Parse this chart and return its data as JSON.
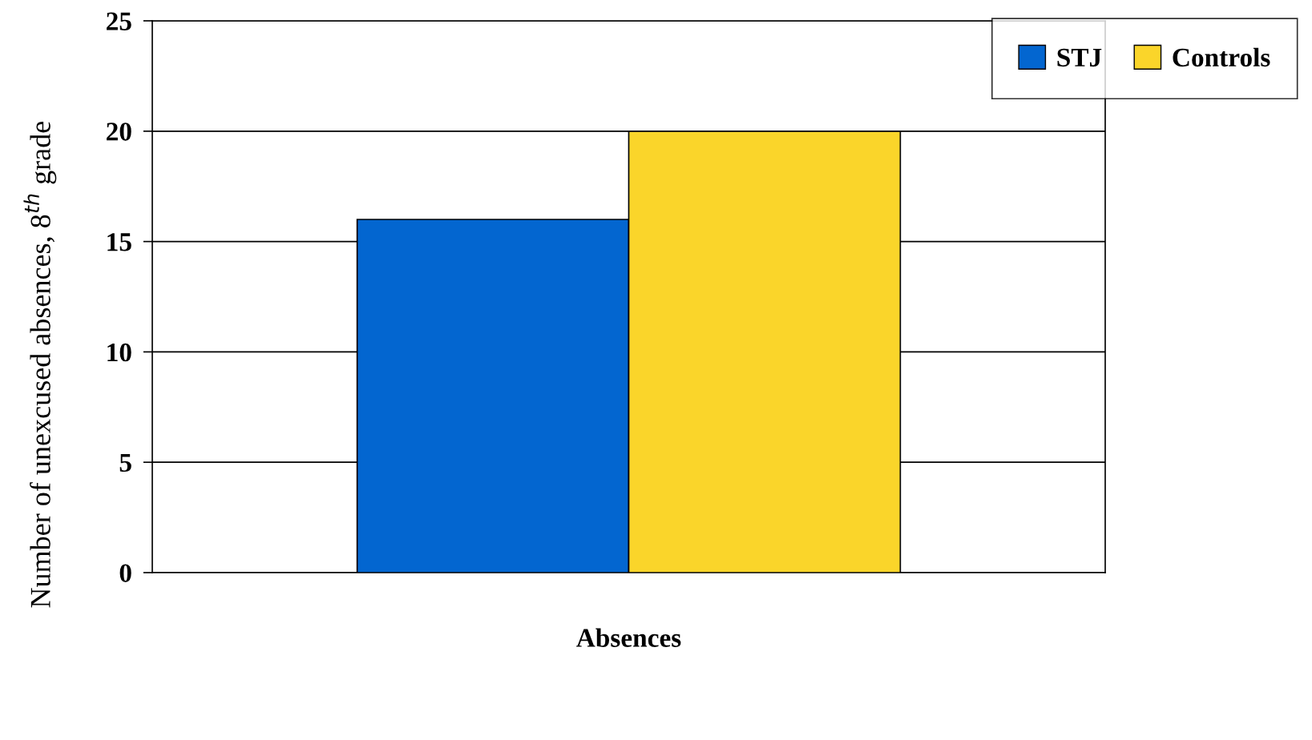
{
  "chart_data": {
    "type": "bar",
    "ylabel": "Number of unexcused absences, 8$^{th}$ grade",
    "categories": [
      "Absences"
    ],
    "series": [
      {
        "name": "STJ",
        "color": "#0366d0",
        "values": [
          16
        ]
      },
      {
        "name": "Controls",
        "color": "#fad52a",
        "values": [
          20
        ]
      }
    ],
    "ylim": [
      0,
      25
    ],
    "yticks": [
      0,
      5,
      10,
      15,
      20,
      25
    ],
    "grid": "y",
    "legend": "top right"
  }
}
